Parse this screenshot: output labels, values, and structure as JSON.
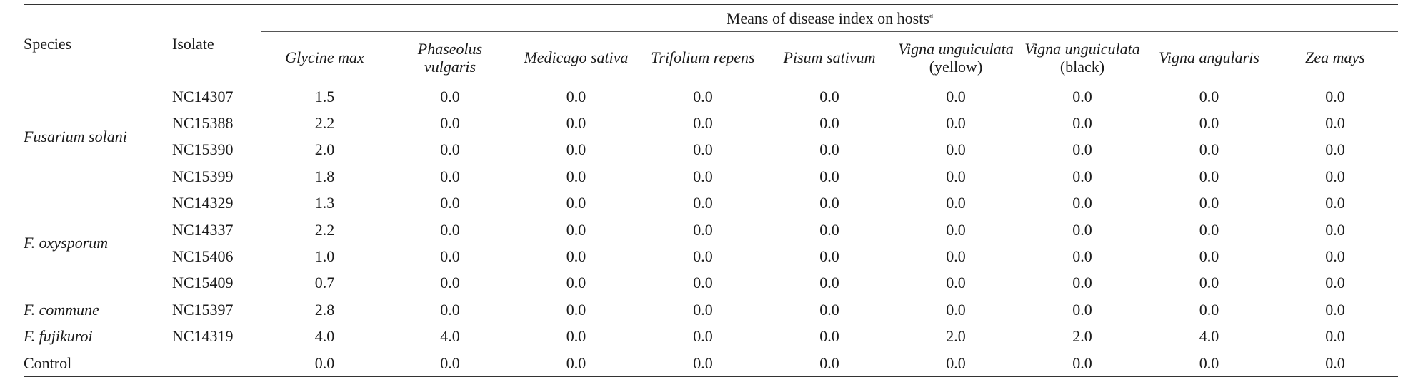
{
  "table": {
    "header": {
      "species": "Species",
      "isolate": "Isolate",
      "group_title": "Means of disease index on hosts",
      "group_sup": "a",
      "hosts": [
        {
          "line1": "Glycine max",
          "line2": ""
        },
        {
          "line1": "Phaseolus",
          "line2": "vulgaris"
        },
        {
          "line1": "Medicago sativa",
          "line2": ""
        },
        {
          "line1": "Trifolium repens",
          "line2": ""
        },
        {
          "line1": "Pisum sativum",
          "line2": ""
        },
        {
          "line1": "Vigna unguiculata",
          "line2": "(yellow)"
        },
        {
          "line1": "Vigna unguiculata",
          "line2": "(black)"
        },
        {
          "line1": "Vigna angularis",
          "line2": ""
        },
        {
          "line1": "Zea mays",
          "line2": ""
        }
      ]
    },
    "groups": [
      {
        "species": "Fusarium solani",
        "rows": [
          {
            "isolate": "NC14307",
            "values": [
              "1.5",
              "0.0",
              "0.0",
              "0.0",
              "0.0",
              "0.0",
              "0.0",
              "0.0",
              "0.0"
            ]
          },
          {
            "isolate": "NC15388",
            "values": [
              "2.2",
              "0.0",
              "0.0",
              "0.0",
              "0.0",
              "0.0",
              "0.0",
              "0.0",
              "0.0"
            ]
          },
          {
            "isolate": "NC15390",
            "values": [
              "2.0",
              "0.0",
              "0.0",
              "0.0",
              "0.0",
              "0.0",
              "0.0",
              "0.0",
              "0.0"
            ]
          },
          {
            "isolate": "NC15399",
            "values": [
              "1.8",
              "0.0",
              "0.0",
              "0.0",
              "0.0",
              "0.0",
              "0.0",
              "0.0",
              "0.0"
            ]
          }
        ]
      },
      {
        "species": "F. oxysporum",
        "rows": [
          {
            "isolate": "NC14329",
            "values": [
              "1.3",
              "0.0",
              "0.0",
              "0.0",
              "0.0",
              "0.0",
              "0.0",
              "0.0",
              "0.0"
            ]
          },
          {
            "isolate": "NC14337",
            "values": [
              "2.2",
              "0.0",
              "0.0",
              "0.0",
              "0.0",
              "0.0",
              "0.0",
              "0.0",
              "0.0"
            ]
          },
          {
            "isolate": "NC15406",
            "values": [
              "1.0",
              "0.0",
              "0.0",
              "0.0",
              "0.0",
              "0.0",
              "0.0",
              "0.0",
              "0.0"
            ]
          },
          {
            "isolate": "NC15409",
            "values": [
              "0.7",
              "0.0",
              "0.0",
              "0.0",
              "0.0",
              "0.0",
              "0.0",
              "0.0",
              "0.0"
            ]
          }
        ]
      },
      {
        "species": "F. commune",
        "rows": [
          {
            "isolate": "NC15397",
            "values": [
              "2.8",
              "0.0",
              "0.0",
              "0.0",
              "0.0",
              "0.0",
              "0.0",
              "0.0",
              "0.0"
            ]
          }
        ]
      },
      {
        "species": "F. fujikuroi",
        "rows": [
          {
            "isolate": "NC14319",
            "values": [
              "4.0",
              "4.0",
              "0.0",
              "0.0",
              "0.0",
              "2.0",
              "2.0",
              "4.0",
              "0.0"
            ]
          }
        ]
      },
      {
        "species": "Control",
        "italic": false,
        "rows": [
          {
            "isolate": "",
            "values": [
              "0.0",
              "0.0",
              "0.0",
              "0.0",
              "0.0",
              "0.0",
              "0.0",
              "0.0",
              "0.0"
            ]
          }
        ]
      }
    ]
  }
}
